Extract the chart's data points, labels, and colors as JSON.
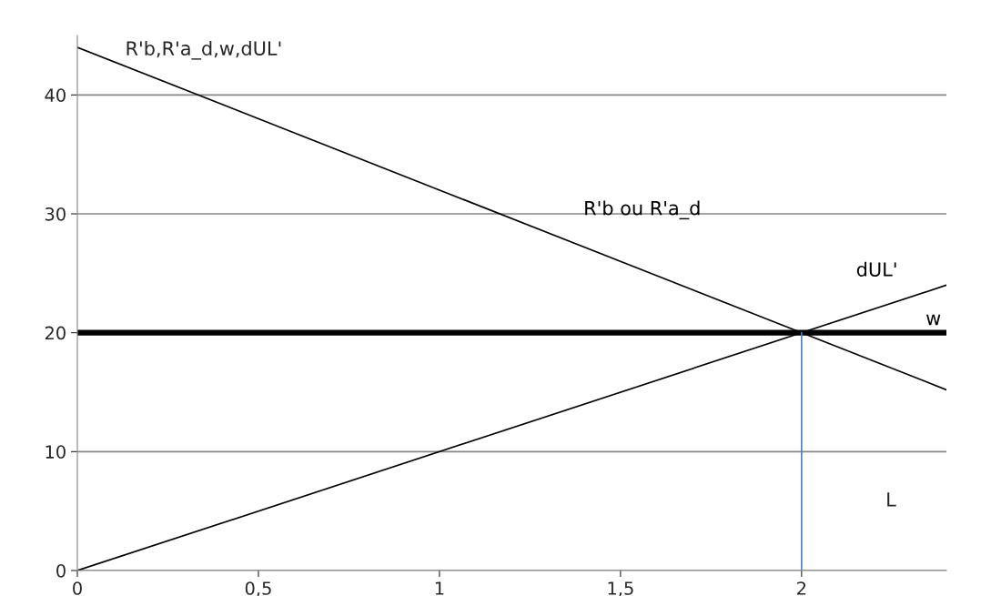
{
  "chart_data": {
    "type": "line",
    "xlabel": "L",
    "ylabel": "R'b,R'a_d,w,dUL'",
    "series": [
      {
        "name": "R'b ou R'a_d",
        "x": [
          0,
          2.4
        ],
        "values": [
          44,
          15.2
        ],
        "color": "#000000"
      },
      {
        "name": "dUL'",
        "x": [
          0,
          2.4
        ],
        "values": [
          0,
          24
        ],
        "color": "#000000"
      },
      {
        "name": "w",
        "x": [
          0,
          2.4
        ],
        "values": [
          20,
          20
        ],
        "color": "#000000"
      },
      {
        "x": [
          2,
          2
        ],
        "values": [
          0,
          20
        ],
        "color": "#4f81bd"
      }
    ],
    "xlim": [
      0,
      2.4
    ],
    "ylim": [
      0,
      45
    ],
    "xticks": [
      0,
      {
        "value": 0.5,
        "label": "0,5"
      },
      1,
      {
        "value": 1.5,
        "label": "1,5"
      },
      2
    ],
    "yticks": [
      0,
      10,
      20,
      30,
      40
    ],
    "grid": "y",
    "legend": false
  }
}
